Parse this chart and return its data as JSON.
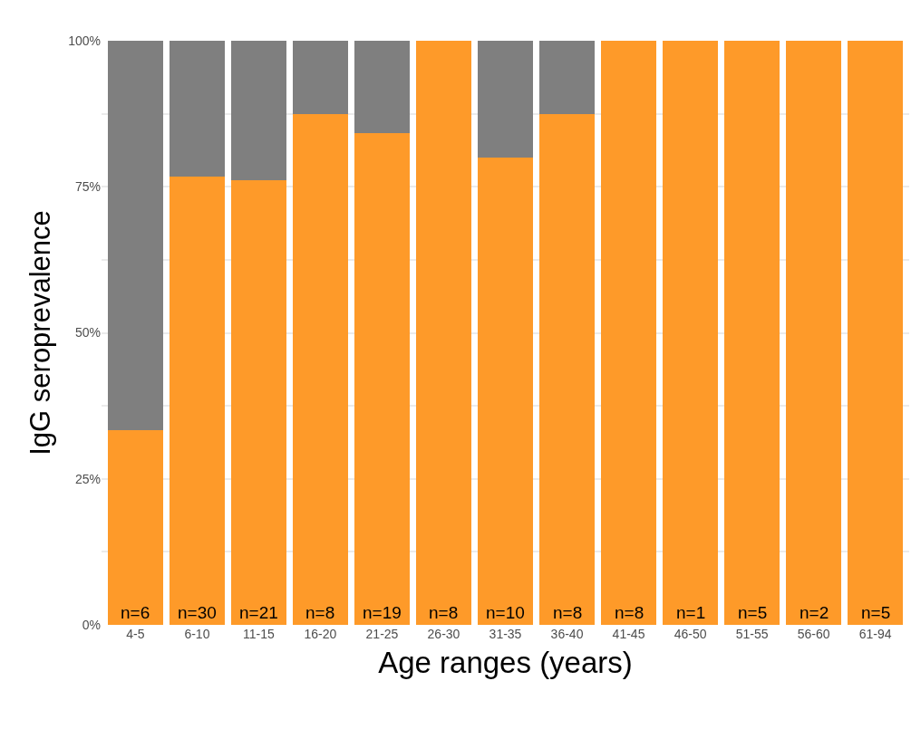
{
  "chart_data": {
    "type": "bar",
    "stacked": true,
    "xlabel": "Age ranges (years)",
    "ylabel": "IgG seroprevalence",
    "categories": [
      "4-5",
      "6-10",
      "11-15",
      "16-20",
      "21-25",
      "26-30",
      "31-35",
      "36-40",
      "41-45",
      "46-50",
      "51-55",
      "56-60",
      "61-94"
    ],
    "series": [
      {
        "color": "#fe9a29",
        "values": [
          33.3,
          76.7,
          76.2,
          87.5,
          84.2,
          100,
          80,
          87.5,
          100,
          100,
          100,
          100,
          100
        ]
      },
      {
        "color": "#7f7f7f",
        "values": [
          66.7,
          23.3,
          23.8,
          12.5,
          15.8,
          0,
          20,
          12.5,
          0,
          0,
          0,
          0,
          0
        ]
      }
    ],
    "ylim": [
      0,
      100
    ],
    "yticks": [
      {
        "value": 0,
        "label": "0%"
      },
      {
        "value": 12.5,
        "label": null
      },
      {
        "value": 25,
        "label": "25%"
      },
      {
        "value": 37.5,
        "label": null
      },
      {
        "value": 50,
        "label": "50%"
      },
      {
        "value": 62.5,
        "label": null
      },
      {
        "value": 75,
        "label": "75%"
      },
      {
        "value": 87.5,
        "label": null
      },
      {
        "value": 100,
        "label": "100%"
      }
    ],
    "grid": true,
    "annotations": [
      {
        "text": "n=6",
        "x": "4-5",
        "y": 0
      },
      {
        "text": "n=30",
        "x": "6-10",
        "y": 0
      },
      {
        "text": "n=21",
        "x": "11-15",
        "y": 0
      },
      {
        "text": "n=8",
        "x": "16-20",
        "y": 0
      },
      {
        "text": "n=19",
        "x": "21-25",
        "y": 0
      },
      {
        "text": "n=8",
        "x": "26-30",
        "y": 0
      },
      {
        "text": "n=10",
        "x": "31-35",
        "y": 0
      },
      {
        "text": "n=8",
        "x": "36-40",
        "y": 0
      },
      {
        "text": "n=8",
        "x": "41-45",
        "y": 0
      },
      {
        "text": "n=1",
        "x": "46-50",
        "y": 0
      },
      {
        "text": "n=5",
        "x": "51-55",
        "y": 0
      },
      {
        "text": "n=2",
        "x": "56-60",
        "y": 0
      },
      {
        "text": "n=5",
        "x": "61-94",
        "y": 0
      }
    ]
  }
}
